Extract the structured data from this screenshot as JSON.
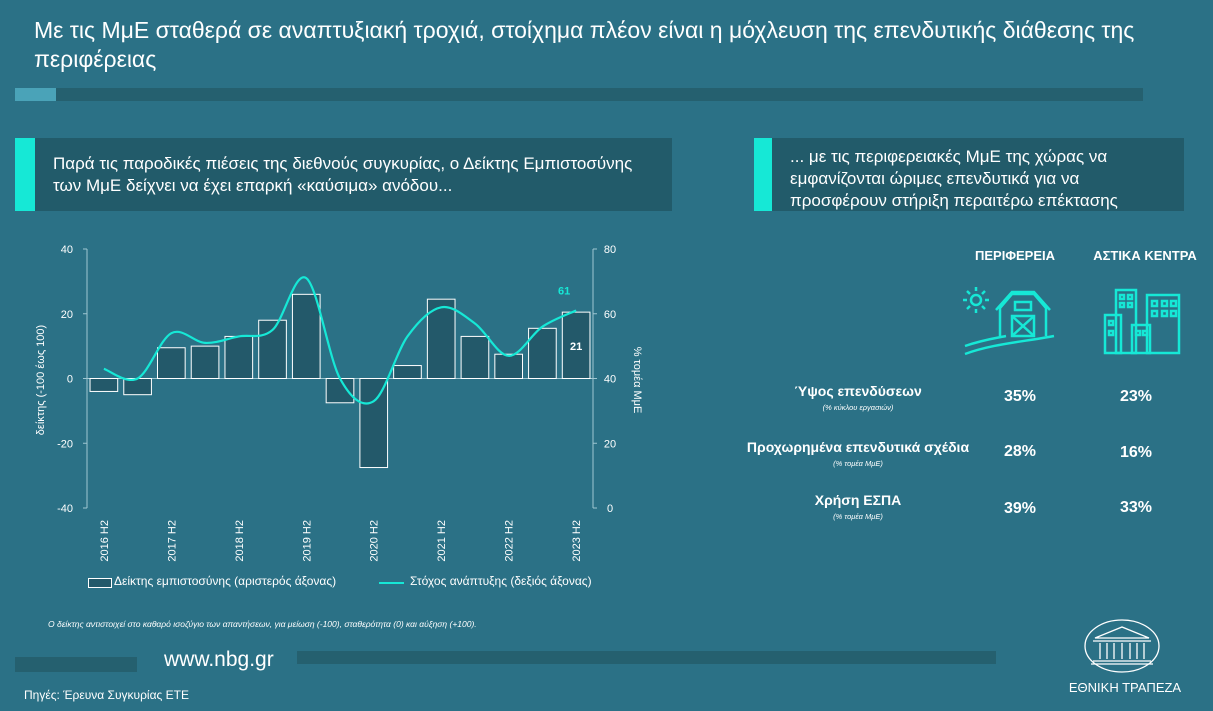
{
  "title": "Με τις ΜμΕ σταθερά σε αναπτυξιακή τροχιά, στοίχημα πλέον είναι η μόχλευση της επενδυτικής διάθεσης της περιφέρειας",
  "left_panel": {
    "heading": "Παρά τις παροδικές πιέσεις της διεθνούς συγκυρίας, ο Δείκτης Εμπιστοσύνης των ΜμΕ δείχνει να έχει επαρκή «καύσιμα» ανόδου..."
  },
  "right_panel": {
    "heading": "... με τις περιφερειακές ΜμΕ της χώρας να εμφανίζονται ώριμες επενδυτικά για να προσφέρουν στήριξη περαιτέρω επέκτασης",
    "col1_header": "ΠΕΡΙΦΕΡΕΙΑ",
    "col2_header": "ΑΣΤΙΚΑ ΚΕΝΤΡΑ",
    "col1_icon": "farm-icon",
    "col2_icon": "city-buildings-icon",
    "rows": [
      {
        "label": "Ύψος επενδύσεων",
        "sublabel": "(% κύκλου εργασιών)",
        "v1": "35%",
        "v2": "23%"
      },
      {
        "label": "Προχωρημένα επενδυτικά σχέδια",
        "sublabel": "(% τομέα ΜμΕ)",
        "v1": "28%",
        "v2": "16%"
      },
      {
        "label": "Χρήση ΕΣΠΑ",
        "sublabel": "(% τομέα ΜμΕ)",
        "v1": "39%",
        "v2": "33%"
      }
    ]
  },
  "chart_data": {
    "type": "bar",
    "x_ticks": [
      "2016 Η2",
      "2017 Η2",
      "2018 Η2",
      "2019 Η2",
      "2020 Η2",
      "2021 Η2",
      "2022 Η2",
      "2023 Η2"
    ],
    "bar_series": {
      "name": "Δείκτης εμπιστοσύνης (αριστερός άξονας)",
      "axis": "left",
      "values": [
        -4,
        -5,
        9.5,
        10,
        13,
        18,
        26,
        -7.5,
        -27.5,
        4,
        24.5,
        13,
        7.5,
        15.5,
        20.5
      ]
    },
    "line_series": {
      "name": "Στόχος ανάπτυξης (δεξιός άξονας)",
      "axis": "right",
      "values": [
        43,
        40,
        54,
        51,
        53,
        55,
        71,
        40,
        33,
        53,
        62,
        57,
        47,
        56,
        61
      ]
    },
    "left_axis": {
      "label": "δείκτης (-100 έως 100)",
      "min": -40,
      "max": 40,
      "ticks": [
        -40,
        -20,
        0,
        20,
        40
      ]
    },
    "right_axis": {
      "label": "% τομέα ΜμΕ",
      "min": 0,
      "max": 80,
      "ticks": [
        0,
        20,
        40,
        60,
        80
      ]
    },
    "data_labels": {
      "last_bar": "21",
      "last_line": "61"
    },
    "colors": {
      "bar_fill": "#23596a",
      "bar_stroke": "#ffffff",
      "line": "#16e8d6"
    },
    "legend_position": "bottom"
  },
  "footnote": "Ο δείκτης αντιστοιχεί στο καθαρό ισοζύγιο των απαντήσεων, για μείωση (-100), σταθερότητα (0) και αύξηση (+100).",
  "footer": {
    "url": "www.nbg.gr",
    "source": "Πηγές: Έρευνα Συγκυρίας ΕΤΕ",
    "logo_text": "ΕΘΝΙΚΗ ΤΡΑΠΕΖΑ",
    "logo_icon": "bank-building-logo"
  },
  "colors": {
    "background": "#2b7186",
    "panel": "#225b6a",
    "accent": "#16e8d6"
  }
}
